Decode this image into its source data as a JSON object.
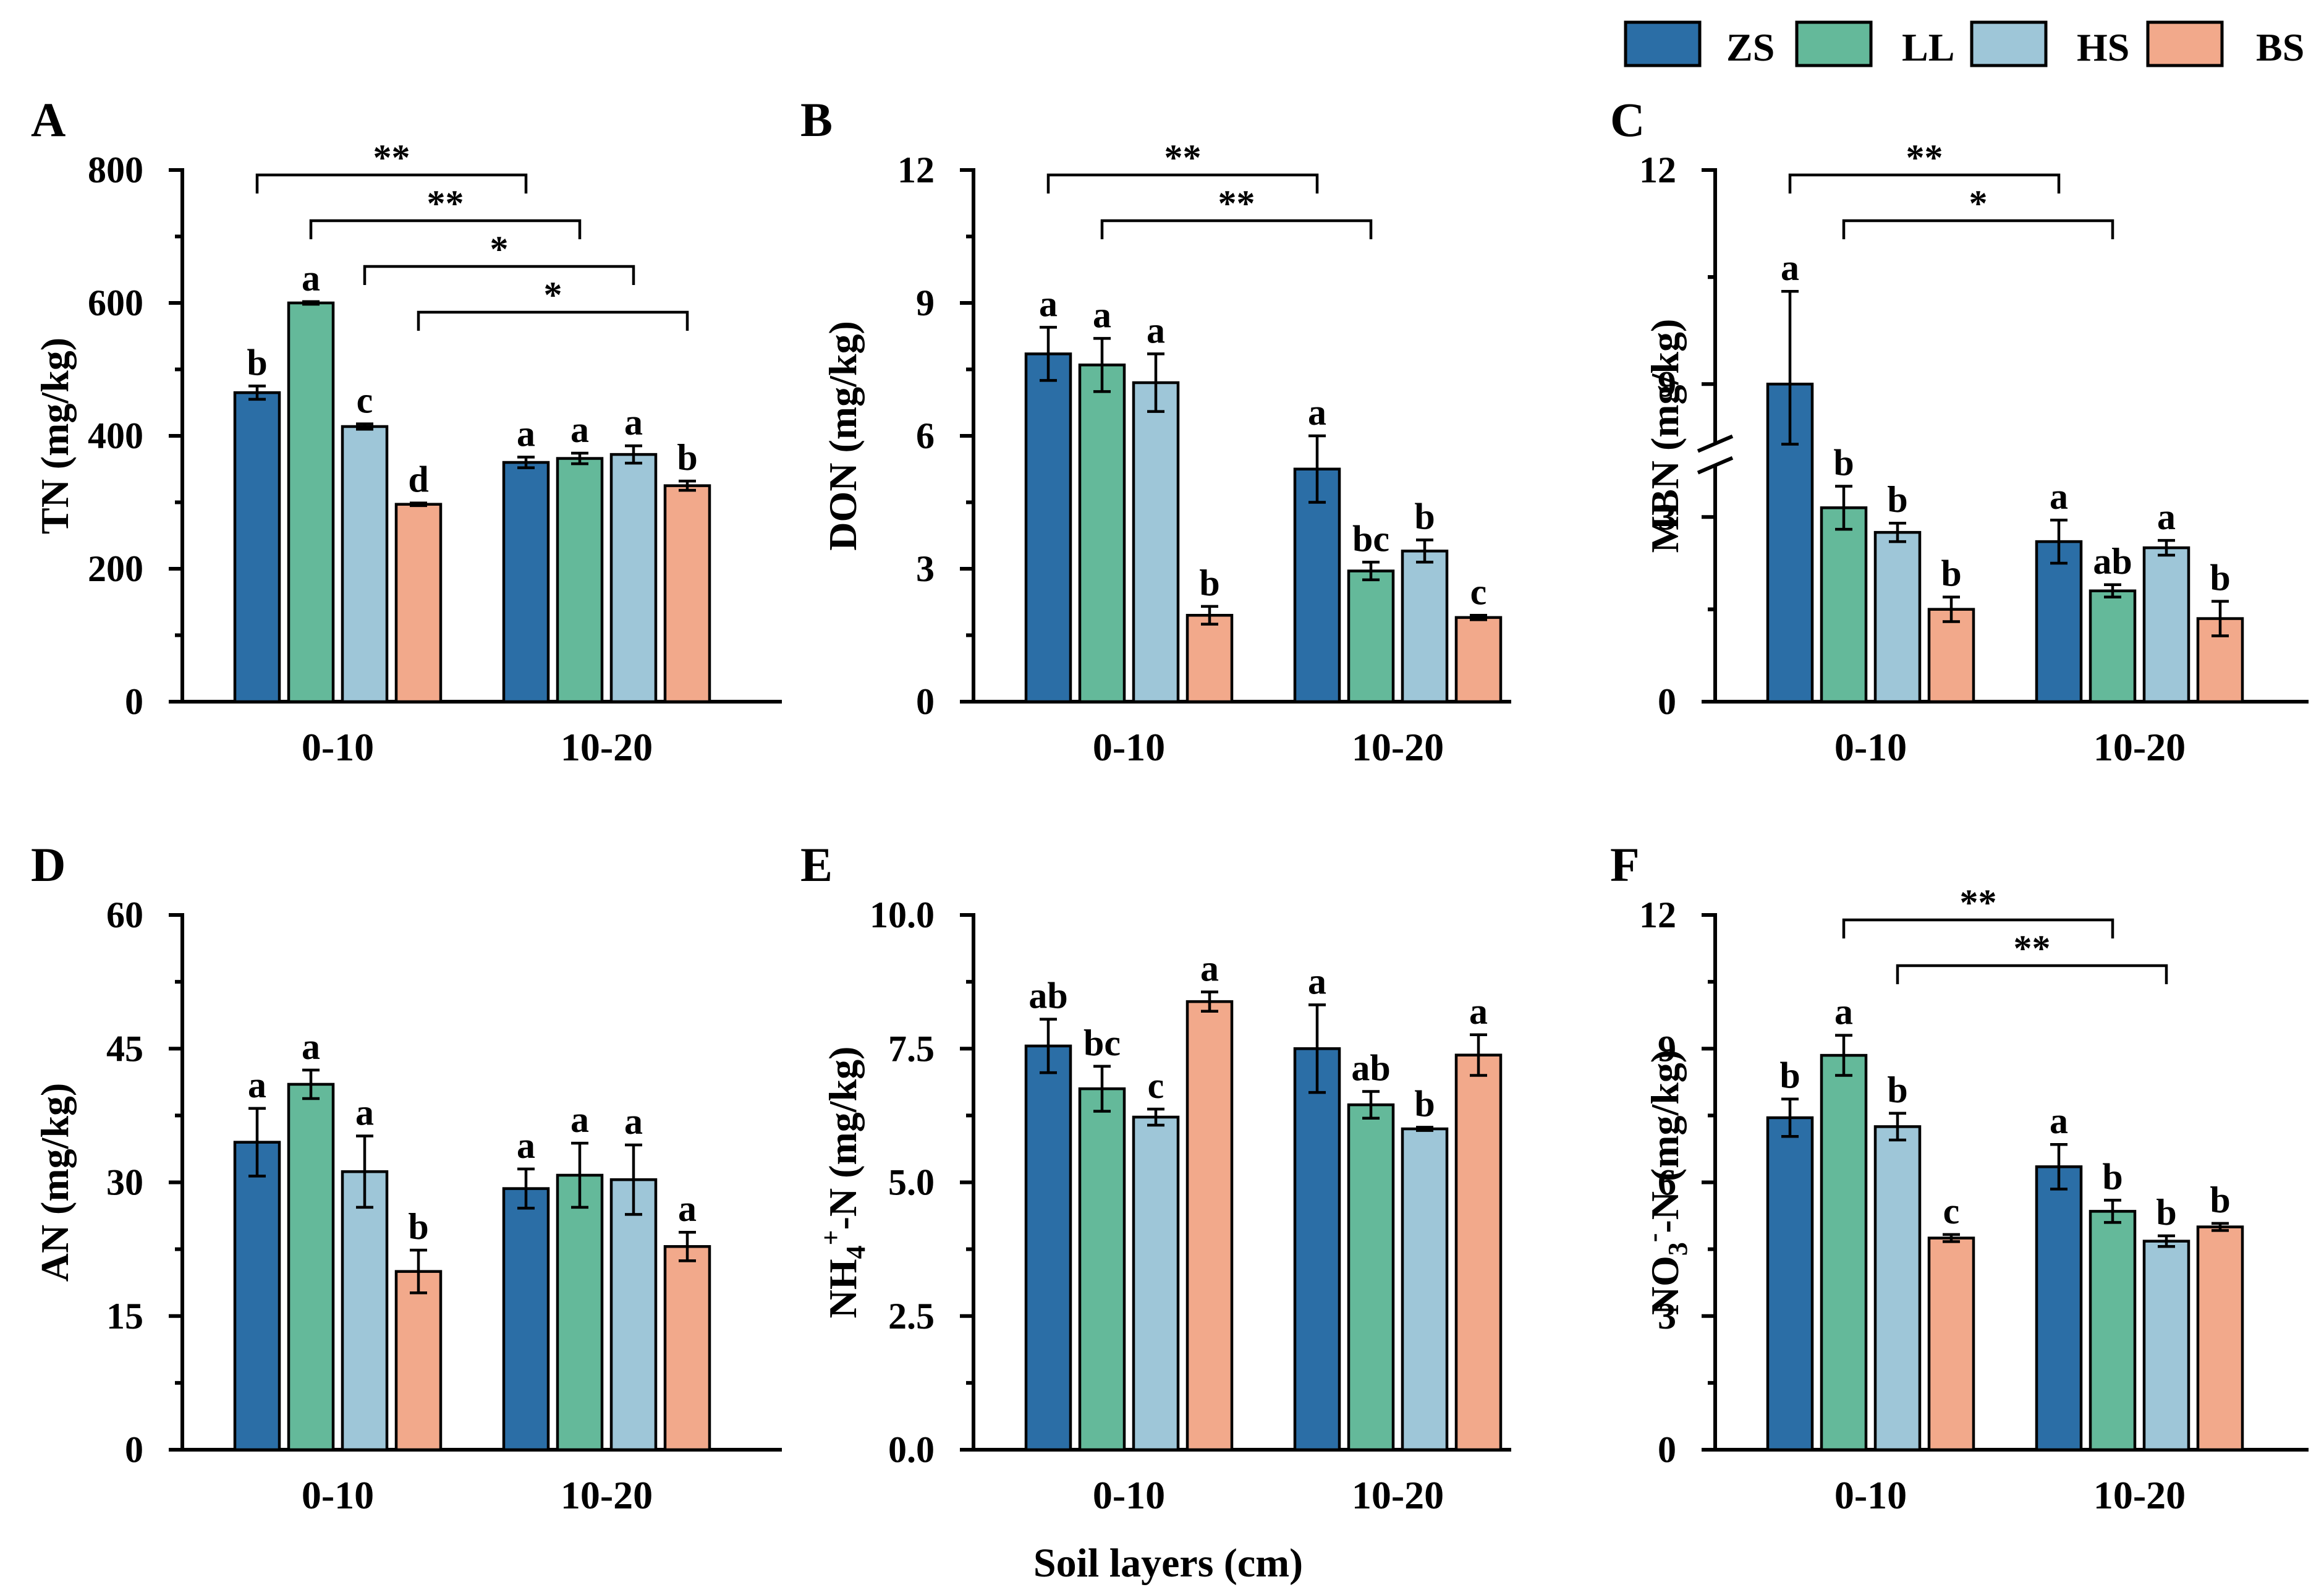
{
  "figure_xlabel": "Soil layers  (cm)",
  "legend": [
    {
      "key": "ZS",
      "label": "ZS",
      "color": "#2b6ea6"
    },
    {
      "key": "LL",
      "label": "LL",
      "color": "#64b99a"
    },
    {
      "key": "HS",
      "label": "HS",
      "color": "#9ec6d8"
    },
    {
      "key": "BS",
      "label": "BS",
      "color": "#f2a98b"
    }
  ],
  "chart_data": [
    {
      "panel": "A",
      "type": "bar",
      "ylabel": "TN (mg/kg)",
      "categories": [
        "0-10",
        "10-20"
      ],
      "ylim": [
        0,
        800
      ],
      "yticks": [
        0,
        200,
        400,
        600,
        800
      ],
      "ytick_labels": [
        "0",
        "200",
        "400",
        "600",
        "800"
      ],
      "series": [
        {
          "name": "ZS",
          "values": [
            465,
            360
          ],
          "errors": [
            10,
            8
          ],
          "letters": [
            "b",
            "a"
          ]
        },
        {
          "name": "LL",
          "values": [
            600,
            366
          ],
          "errors": [
            2,
            8
          ],
          "letters": [
            "a",
            "a"
          ]
        },
        {
          "name": "HS",
          "values": [
            414,
            372
          ],
          "errors": [
            4,
            13
          ],
          "letters": [
            "c",
            "a"
          ]
        },
        {
          "name": "BS",
          "values": [
            297,
            325
          ],
          "errors": [
            2,
            7
          ],
          "letters": [
            "d",
            "b"
          ]
        }
      ],
      "significance": [
        {
          "from": {
            "group": 0,
            "series": 0
          },
          "to": {
            "group": 1,
            "series": 0
          },
          "label": "**"
        },
        {
          "from": {
            "group": 0,
            "series": 1
          },
          "to": {
            "group": 1,
            "series": 1
          },
          "label": "**"
        },
        {
          "from": {
            "group": 0,
            "series": 2
          },
          "to": {
            "group": 1,
            "series": 2
          },
          "label": "*"
        },
        {
          "from": {
            "group": 0,
            "series": 3
          },
          "to": {
            "group": 1,
            "series": 3
          },
          "label": "*"
        }
      ]
    },
    {
      "panel": "B",
      "type": "bar",
      "ylabel": "DON (mg/kg)",
      "categories": [
        "0-10",
        "10-20"
      ],
      "ylim": [
        0,
        12
      ],
      "yticks": [
        0,
        3,
        6,
        9,
        12
      ],
      "ytick_labels": [
        "0",
        "3",
        "6",
        "9",
        "12"
      ],
      "series": [
        {
          "name": "ZS",
          "values": [
            7.85,
            5.25
          ],
          "errors": [
            0.6,
            0.75
          ],
          "letters": [
            "a",
            "a"
          ]
        },
        {
          "name": "LL",
          "values": [
            7.6,
            2.95
          ],
          "errors": [
            0.6,
            0.2
          ],
          "letters": [
            "a",
            "bc"
          ]
        },
        {
          "name": "HS",
          "values": [
            7.2,
            3.4
          ],
          "errors": [
            0.65,
            0.25
          ],
          "letters": [
            "a",
            "b"
          ]
        },
        {
          "name": "BS",
          "values": [
            1.95,
            1.9
          ],
          "errors": [
            0.2,
            0.05
          ],
          "letters": [
            "b",
            "c"
          ]
        }
      ],
      "significance": [
        {
          "from": {
            "group": 0,
            "series": 0
          },
          "to": {
            "group": 1,
            "series": 0
          },
          "label": "**"
        },
        {
          "from": {
            "group": 0,
            "series": 1
          },
          "to": {
            "group": 1,
            "series": 1
          },
          "label": "**"
        }
      ]
    },
    {
      "panel": "C",
      "type": "bar",
      "ylabel": "MBN (mg/kg)",
      "categories": [
        "0-10",
        "10-20"
      ],
      "ylim": [
        0,
        12
      ],
      "axis_break": [
        3.8,
        8.2
      ],
      "yticks": [
        0,
        3,
        9,
        12
      ],
      "ytick_labels": [
        "0",
        "3",
        "9",
        "12"
      ],
      "series": [
        {
          "name": "ZS",
          "values": [
            9.0,
            2.6
          ],
          "errors": [
            1.3,
            0.35
          ],
          "letters": [
            "a",
            "a"
          ]
        },
        {
          "name": "LL",
          "values": [
            3.15,
            1.8
          ],
          "errors": [
            0.35,
            0.1
          ],
          "letters": [
            "b",
            "ab"
          ]
        },
        {
          "name": "HS",
          "values": [
            2.75,
            2.5
          ],
          "errors": [
            0.15,
            0.12
          ],
          "letters": [
            "b",
            "a"
          ]
        },
        {
          "name": "BS",
          "values": [
            1.5,
            1.35
          ],
          "errors": [
            0.2,
            0.28
          ],
          "letters": [
            "b",
            "b"
          ]
        }
      ],
      "significance": [
        {
          "from": {
            "group": 0,
            "series": 0
          },
          "to": {
            "group": 1,
            "series": 0
          },
          "label": "**"
        },
        {
          "from": {
            "group": 0,
            "series": 1
          },
          "to": {
            "group": 1,
            "series": 1
          },
          "label": "*"
        }
      ]
    },
    {
      "panel": "D",
      "type": "bar",
      "ylabel": "AN (mg/kg)",
      "categories": [
        "0-10",
        "10-20"
      ],
      "ylim": [
        0,
        60
      ],
      "yticks": [
        0,
        15,
        30,
        45,
        60
      ],
      "ytick_labels": [
        "0",
        "15",
        "30",
        "45",
        "60"
      ],
      "series": [
        {
          "name": "ZS",
          "values": [
            34.5,
            29.3
          ],
          "errors": [
            3.8,
            2.2
          ],
          "letters": [
            "a",
            "a"
          ]
        },
        {
          "name": "LL",
          "values": [
            41.0,
            30.8
          ],
          "errors": [
            1.6,
            3.6
          ],
          "letters": [
            "a",
            "a"
          ]
        },
        {
          "name": "HS",
          "values": [
            31.2,
            30.3
          ],
          "errors": [
            4.0,
            3.9
          ],
          "letters": [
            "a",
            "a"
          ]
        },
        {
          "name": "BS",
          "values": [
            20.0,
            22.8
          ],
          "errors": [
            2.4,
            1.6
          ],
          "letters": [
            "b",
            "a"
          ]
        }
      ],
      "significance": []
    },
    {
      "panel": "E",
      "type": "bar",
      "ylabel_parts": [
        {
          "text": "NH"
        },
        {
          "text": "4",
          "sub": true
        },
        {
          "text": "+",
          "sup": true
        },
        {
          "text": "-N (mg/kg)"
        }
      ],
      "categories": [
        "0-10",
        "10-20"
      ],
      "ylim": [
        0,
        10
      ],
      "yticks": [
        0,
        2.5,
        5,
        7.5,
        10
      ],
      "ytick_labels": [
        "0.0",
        "2.5",
        "5.0",
        "7.5",
        "10.0"
      ],
      "series": [
        {
          "name": "ZS",
          "values": [
            7.55,
            7.5
          ],
          "errors": [
            0.5,
            0.82
          ],
          "letters": [
            "ab",
            "a"
          ]
        },
        {
          "name": "LL",
          "values": [
            6.75,
            6.45
          ],
          "errors": [
            0.42,
            0.25
          ],
          "letters": [
            "bc",
            "ab"
          ]
        },
        {
          "name": "HS",
          "values": [
            6.22,
            6.0
          ],
          "errors": [
            0.15,
            0.03
          ],
          "letters": [
            "c",
            "b"
          ]
        },
        {
          "name": "BS",
          "values": [
            8.38,
            7.38
          ],
          "errors": [
            0.18,
            0.38
          ],
          "letters": [
            "a",
            "a"
          ]
        }
      ],
      "significance": []
    },
    {
      "panel": "F",
      "type": "bar",
      "ylabel_parts": [
        {
          "text": "NO"
        },
        {
          "text": "3",
          "sub": true
        },
        {
          "text": "-",
          "sup": true
        },
        {
          "text": "-N (mg/kg)"
        }
      ],
      "categories": [
        "0-10",
        "10-20"
      ],
      "ylim": [
        0,
        12
      ],
      "yticks": [
        0,
        3,
        6,
        9,
        12
      ],
      "ytick_labels": [
        "0",
        "3",
        "6",
        "9",
        "12"
      ],
      "series": [
        {
          "name": "ZS",
          "values": [
            7.45,
            6.35
          ],
          "errors": [
            0.42,
            0.5
          ],
          "letters": [
            "b",
            "a"
          ]
        },
        {
          "name": "LL",
          "values": [
            8.85,
            5.35
          ],
          "errors": [
            0.45,
            0.25
          ],
          "letters": [
            "a",
            "b"
          ]
        },
        {
          "name": "HS",
          "values": [
            7.25,
            4.68
          ],
          "errors": [
            0.3,
            0.12
          ],
          "letters": [
            "b",
            "b"
          ]
        },
        {
          "name": "BS",
          "values": [
            4.75,
            5.0
          ],
          "errors": [
            0.08,
            0.08
          ],
          "letters": [
            "c",
            "b"
          ]
        }
      ],
      "significance": [
        {
          "from": {
            "group": 0,
            "series": 1
          },
          "to": {
            "group": 1,
            "series": 1
          },
          "label": "**"
        },
        {
          "from": {
            "group": 0,
            "series": 2
          },
          "to": {
            "group": 1,
            "series": 2
          },
          "label": "**"
        }
      ]
    }
  ]
}
